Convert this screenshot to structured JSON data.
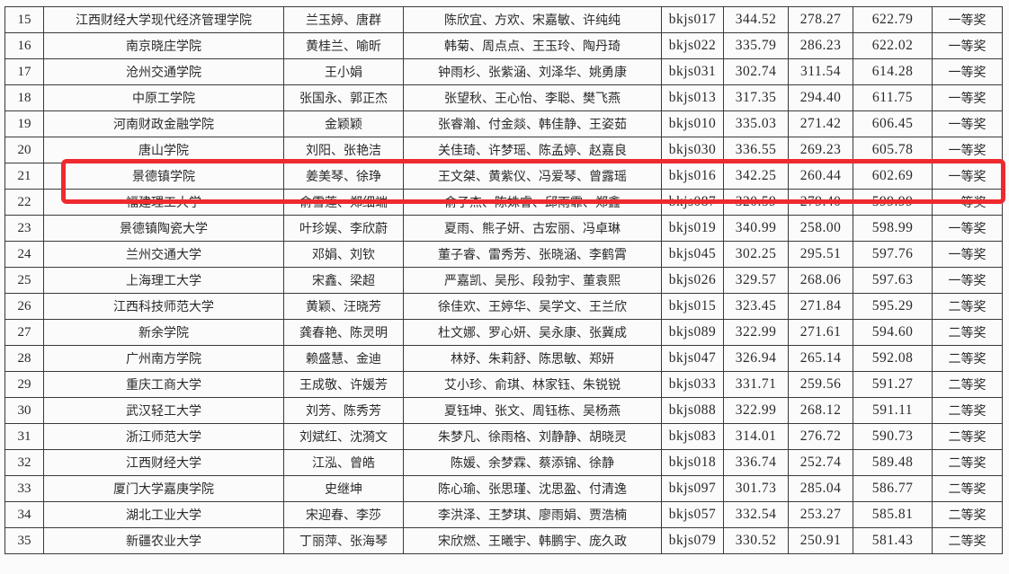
{
  "highlight_color": "#ee2a2f",
  "rows": [
    {
      "rank": "15",
      "school": "江西财经大学现代经济管理学院",
      "advisors": "兰玉婷、唐群",
      "members": "陈欣宜、方欢、宋嘉敏、许纯纯",
      "id": "bkjs017",
      "score1": "344.52",
      "score2": "278.27",
      "total": "622.79",
      "award": "一等奖"
    },
    {
      "rank": "16",
      "school": "南京晓庄学院",
      "advisors": "黄桂兰、喻昕",
      "members": "韩菊、周点点、王玉玲、陶丹琦",
      "id": "bkjs022",
      "score1": "335.79",
      "score2": "286.23",
      "total": "622.02",
      "award": "一等奖"
    },
    {
      "rank": "17",
      "school": "沧州交通学院",
      "advisors": "王小娟",
      "members": "钟雨杉、张紫涵、刘泽华、姚勇康",
      "id": "bkjs031",
      "score1": "302.74",
      "score2": "311.54",
      "total": "614.28",
      "award": "一等奖"
    },
    {
      "rank": "18",
      "school": "中原工学院",
      "advisors": "张国永、郭正杰",
      "members": "张望秋、王心怡、李聪、樊飞燕",
      "id": "bkjs013",
      "score1": "317.35",
      "score2": "294.40",
      "total": "611.75",
      "award": "一等奖"
    },
    {
      "rank": "19",
      "school": "河南财政金融学院",
      "advisors": "金颖颖",
      "members": "张睿瀚、付金燚、韩佳静、王姿茹",
      "id": "bkjs010",
      "score1": "335.03",
      "score2": "271.42",
      "total": "606.45",
      "award": "一等奖"
    },
    {
      "rank": "20",
      "school": "唐山学院",
      "advisors": "刘阳、张艳洁",
      "members": "关佳琦、许梦瑶、陈孟婷、赵嘉良",
      "id": "bkjs030",
      "score1": "336.55",
      "score2": "269.23",
      "total": "605.78",
      "award": "一等奖"
    },
    {
      "rank": "21",
      "school": "景德镇学院",
      "advisors": "姜美琴、徐琤",
      "members": "王文桀、黄紫仪、冯爱琴、曾露瑶",
      "id": "bkjs016",
      "score1": "342.25",
      "score2": "260.44",
      "total": "602.69",
      "award": "一等奖",
      "highlighted": true
    },
    {
      "rank": "22",
      "school": "福建理工大学",
      "advisors": "俞雪莲、郑细端",
      "members": "俞子杰、陈姝睿、邱雨霏、郑鑫",
      "id": "bkjs087",
      "score1": "320.59",
      "score2": "279.40",
      "total": "599.99",
      "award": "一等奖"
    },
    {
      "rank": "23",
      "school": "景德镇陶瓷大学",
      "advisors": "叶珍娱、李欣蔚",
      "members": "夏雨、熊子妍、古宏丽、冯卓琳",
      "id": "bkjs019",
      "score1": "340.99",
      "score2": "258.00",
      "total": "598.99",
      "award": "一等奖"
    },
    {
      "rank": "24",
      "school": "兰州交通大学",
      "advisors": "邓娟、刘钦",
      "members": "董子睿、雷秀芳、张晓涵、李鹤霄",
      "id": "bkjs045",
      "score1": "302.25",
      "score2": "295.51",
      "total": "597.76",
      "award": "一等奖"
    },
    {
      "rank": "25",
      "school": "上海理工大学",
      "advisors": "宋鑫、梁超",
      "members": "严嘉凯、吴彤、段勃宇、董袁熙",
      "id": "bkjs026",
      "score1": "329.57",
      "score2": "268.06",
      "total": "597.63",
      "award": "一等奖"
    },
    {
      "rank": "26",
      "school": "江西科技师范大学",
      "advisors": "黄颖、汪晓芳",
      "members": "徐佳欢、王婷华、吴学文、王兰欣",
      "id": "bkjs015",
      "score1": "323.45",
      "score2": "271.84",
      "total": "595.29",
      "award": "二等奖"
    },
    {
      "rank": "27",
      "school": "新余学院",
      "advisors": "龚春艳、陈灵明",
      "members": "杜文娜、罗心妍、吴永康、张冀成",
      "id": "bkjs089",
      "score1": "322.99",
      "score2": "271.61",
      "total": "594.60",
      "award": "二等奖"
    },
    {
      "rank": "28",
      "school": "广州南方学院",
      "advisors": "赖盛慧、金迪",
      "members": "林妤、朱莉舒、陈思敏、郑妍",
      "id": "bkjs047",
      "score1": "326.94",
      "score2": "265.14",
      "total": "592.08",
      "award": "二等奖"
    },
    {
      "rank": "29",
      "school": "重庆工商大学",
      "advisors": "王成敬、许媛芳",
      "members": "艾小珍、俞琪、林家钰、朱锐锐",
      "id": "bkjs033",
      "score1": "331.71",
      "score2": "259.56",
      "total": "591.27",
      "award": "二等奖"
    },
    {
      "rank": "30",
      "school": "武汉轻工大学",
      "advisors": "刘芳、陈秀芳",
      "members": "夏钰坤、张文、周钰栋、吴杨燕",
      "id": "bkjs088",
      "score1": "322.99",
      "score2": "268.12",
      "total": "591.11",
      "award": "二等奖"
    },
    {
      "rank": "31",
      "school": "浙江师范大学",
      "advisors": "刘斌红、沈漪文",
      "members": "朱梦凡、徐雨格、刘静静、胡晓灵",
      "id": "bkjs083",
      "score1": "314.01",
      "score2": "276.72",
      "total": "590.73",
      "award": "二等奖"
    },
    {
      "rank": "32",
      "school": "江西财经大学",
      "advisors": "江泓、曾皓",
      "members": "陈媛、余梦霖、蔡添锦、徐静",
      "id": "bkjs018",
      "score1": "336.74",
      "score2": "252.74",
      "total": "589.48",
      "award": "二等奖"
    },
    {
      "rank": "33",
      "school": "厦门大学嘉庚学院",
      "advisors": "史继坤",
      "members": "陈心瑜、张思瑾、沈思盈、付清逸",
      "id": "bkjs097",
      "score1": "301.73",
      "score2": "285.04",
      "total": "586.77",
      "award": "二等奖"
    },
    {
      "rank": "34",
      "school": "湖北工业大学",
      "advisors": "宋迎春、李莎",
      "members": "李洪泽、王梦琪、廖雨娟、贾浩楠",
      "id": "bkjs057",
      "score1": "332.54",
      "score2": "253.27",
      "total": "585.81",
      "award": "二等奖"
    },
    {
      "rank": "35",
      "school": "新疆农业大学",
      "advisors": "丁丽萍、张海琴",
      "members": "宋欣燃、王曦宇、韩鹏宇、庞久政",
      "id": "bkjs079",
      "score1": "330.52",
      "score2": "250.91",
      "total": "581.43",
      "award": "二等奖"
    }
  ]
}
